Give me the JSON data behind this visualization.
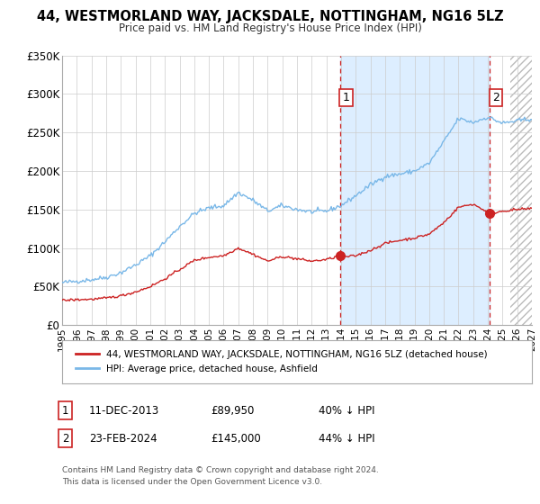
{
  "title": "44, WESTMORLAND WAY, JACKSDALE, NOTTINGHAM, NG16 5LZ",
  "subtitle": "Price paid vs. HM Land Registry's House Price Index (HPI)",
  "hpi_color": "#7ab8e8",
  "price_color": "#cc2222",
  "shade_color": "#ddeeff",
  "bg_color": "#ffffff",
  "grid_color": "#cccccc",
  "ylim": [
    0,
    350000
  ],
  "yticks": [
    0,
    50000,
    100000,
    150000,
    200000,
    250000,
    300000,
    350000
  ],
  "ytick_labels": [
    "£0",
    "£50K",
    "£100K",
    "£150K",
    "£200K",
    "£250K",
    "£300K",
    "£350K"
  ],
  "sale1_date": "11-DEC-2013",
  "sale1_price": 89950,
  "sale1_hpi_pct": "40% ↓ HPI",
  "sale1_x": 2013.94,
  "sale2_date": "23-FEB-2024",
  "sale2_price": 145000,
  "sale2_hpi_pct": "44% ↓ HPI",
  "sale2_x": 2024.14,
  "legend_label1": "44, WESTMORLAND WAY, JACKSDALE, NOTTINGHAM, NG16 5LZ (detached house)",
  "legend_label2": "HPI: Average price, detached house, Ashfield",
  "footnote": "Contains HM Land Registry data © Crown copyright and database right 2024.\nThis data is licensed under the Open Government Licence v3.0.",
  "xmin": 1995,
  "xmax": 2027,
  "hatch_start": 2025.5
}
